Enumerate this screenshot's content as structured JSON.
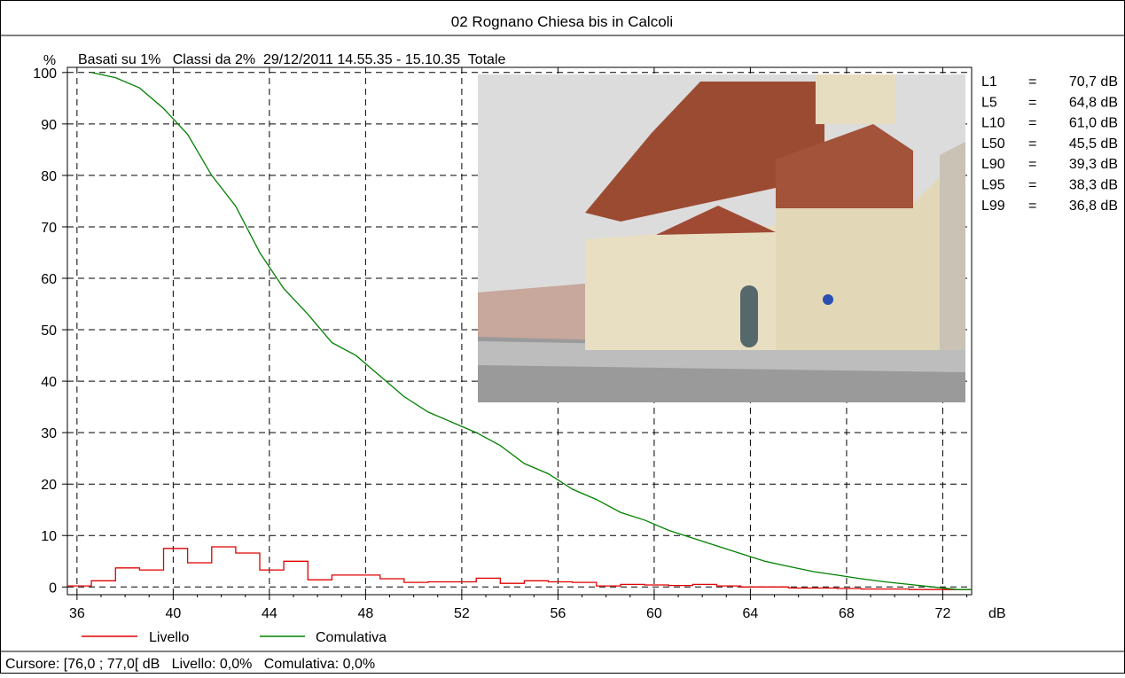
{
  "chart_data": {
    "type": "line",
    "title": "02 Rognano Chiesa bis in Calcoli",
    "ylabel": "%",
    "xlabel": "dB",
    "subtitle": "Basati su 1%   Classi da 2%  29/12/2011 14.55.35 - 15.10.35  Totale",
    "xlim": [
      35.6,
      73.2
    ],
    "ylim": [
      -1.5,
      101
    ],
    "x_ticks": [
      "36",
      "40",
      "44",
      "48",
      "52",
      "56",
      "60",
      "64",
      "68",
      "72"
    ],
    "y_ticks": [
      "100",
      "90",
      "80",
      "70",
      "60",
      "50",
      "40",
      "30",
      "20",
      "10",
      "0"
    ],
    "grid": true,
    "legend_position": "bottom-left",
    "series": [
      {
        "name": "Livello",
        "color": "#e00000",
        "step": true,
        "x": [
          35.6,
          36.6,
          37.6,
          38.6,
          39.6,
          40.6,
          41.6,
          42.6,
          43.6,
          44.6,
          45.6,
          46.6,
          47.6,
          48.6,
          49.6,
          50.6,
          51.6,
          52.6,
          53.6,
          54.6,
          55.6,
          56.6,
          57.6,
          58.6,
          59.6,
          60.6,
          61.6,
          62.6,
          63.6,
          64.6,
          65.6,
          66.6,
          67.6,
          68.6,
          69.6,
          70.6,
          71.6,
          72.6
        ],
        "values": [
          0.2,
          1.2,
          3.7,
          3.3,
          7.5,
          4.7,
          7.8,
          6.6,
          3.3,
          5.0,
          1.4,
          2.3,
          2.3,
          1.6,
          0.9,
          1.0,
          1.0,
          1.7,
          0.7,
          1.2,
          1.0,
          0.9,
          0.2,
          0.5,
          0.4,
          0.3,
          0.5,
          0.2,
          0.0,
          0.0,
          -0.2,
          -0.2,
          -0.3,
          -0.4,
          -0.4,
          -0.5,
          -0.5,
          -0.5
        ]
      },
      {
        "name": "Comulativa",
        "color": "#008000",
        "step": false,
        "x": [
          36.6,
          37.6,
          38.6,
          39.6,
          40.6,
          41.6,
          42.6,
          43.6,
          44.6,
          45.6,
          46.6,
          47.6,
          48.6,
          49.6,
          50.6,
          51.6,
          52.6,
          53.6,
          54.6,
          55.6,
          56.6,
          57.6,
          58.6,
          59.6,
          60.6,
          61.6,
          62.6,
          63.6,
          64.6,
          65.6,
          66.6,
          67.6,
          68.6,
          69.6,
          70.6,
          71.6,
          72.6,
          73.2
        ],
        "values": [
          100.0,
          99.0,
          97.0,
          93.0,
          88.0,
          80.0,
          74.0,
          65.0,
          58.0,
          53.0,
          47.5,
          45.0,
          41.0,
          37.0,
          34.0,
          32.0,
          30.0,
          27.5,
          24.0,
          22.0,
          19.0,
          17.0,
          14.5,
          13.0,
          11.0,
          9.5,
          8.0,
          6.5,
          5.0,
          4.0,
          3.0,
          2.3,
          1.6,
          1.0,
          0.5,
          0.0,
          -0.5,
          -0.5
        ]
      }
    ],
    "statistics": [
      {
        "label": "L1",
        "eq": "=",
        "value": "70,7 dB"
      },
      {
        "label": "L5",
        "eq": "=",
        "value": "64,8 dB"
      },
      {
        "label": "L10",
        "eq": "=",
        "value": "61,0 dB"
      },
      {
        "label": "L50",
        "eq": "=",
        "value": "45,5 dB"
      },
      {
        "label": "L90",
        "eq": "=",
        "value": "39,3 dB"
      },
      {
        "label": "L95",
        "eq": "=",
        "value": "38,3 dB"
      },
      {
        "label": "L99",
        "eq": "=",
        "value": "36,8 dB"
      }
    ],
    "cursor_readout": "Cursore: [76,0 ; 77,0[ dB   Livello: 0,0%   Comulativa: 0,0%"
  },
  "legend": {
    "livello_label": "Livello",
    "comulativa_label": "Comulativa"
  }
}
